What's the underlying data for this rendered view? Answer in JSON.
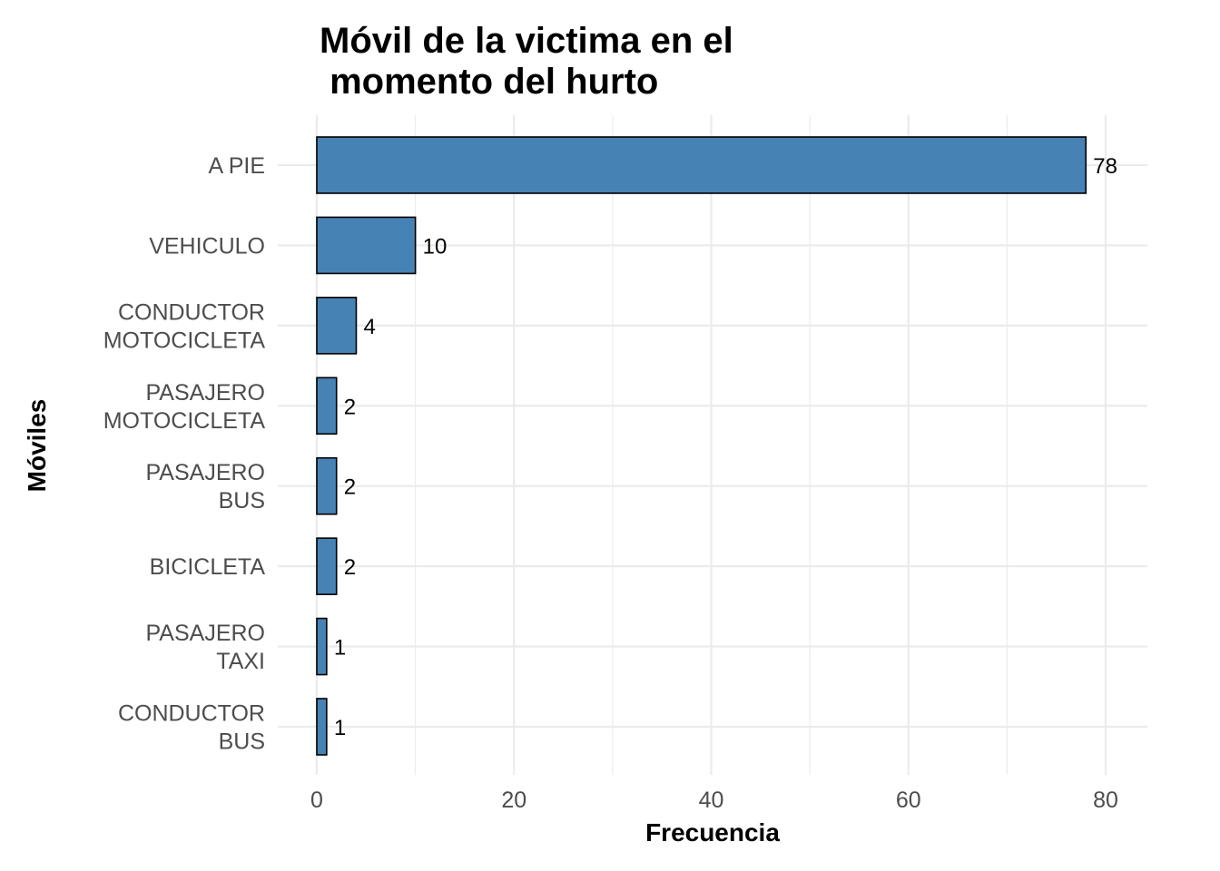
{
  "chart_data": {
    "type": "bar",
    "orientation": "horizontal",
    "title_lines": [
      "Móvil de la victima en el",
      " momento del hurto"
    ],
    "xlabel": "Frecuencia",
    "ylabel": "Móviles",
    "xlim": [
      0,
      84
    ],
    "xticks": [
      0,
      20,
      40,
      60,
      80
    ],
    "grid": true,
    "bar_color": "#4682B4",
    "bar_outline": "#000000",
    "categories": [
      [
        "A PIE"
      ],
      [
        "VEHICULO"
      ],
      [
        "CONDUCTOR",
        "MOTOCICLETA"
      ],
      [
        "PASAJERO",
        "MOTOCICLETA"
      ],
      [
        "PASAJERO",
        "BUS"
      ],
      [
        "BICICLETA"
      ],
      [
        "PASAJERO",
        "TAXI"
      ],
      [
        "CONDUCTOR",
        "BUS"
      ]
    ],
    "values": [
      78,
      10,
      4,
      2,
      2,
      2,
      1,
      1
    ]
  }
}
